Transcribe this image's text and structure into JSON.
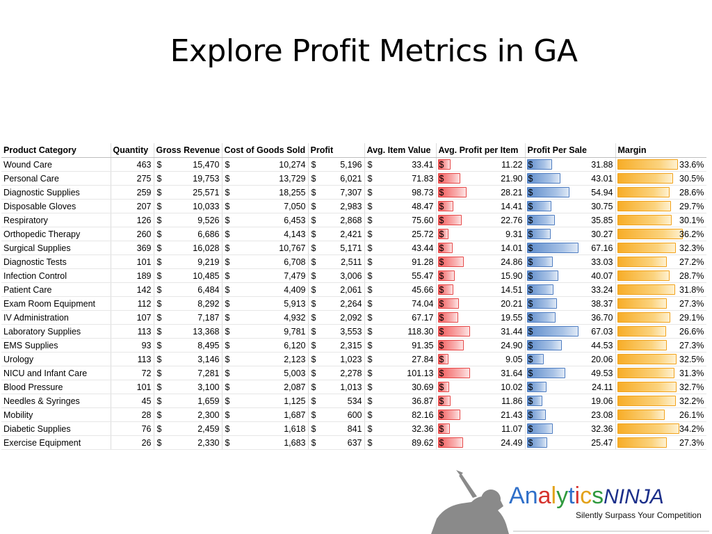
{
  "slide": {
    "title": "Explore Profit Metrics in GA"
  },
  "table": {
    "headers": {
      "category": "Product Category",
      "quantity": "Quantity",
      "gross_revenue": "Gross Revenue",
      "cogs": "Cost of Goods Sold",
      "profit": "Profit",
      "avg_item_value": "Avg. Item Value",
      "avg_profit_per_item": "Avg. Profit per Item",
      "profit_per_sale": "Profit Per Sale",
      "margin": "Margin"
    },
    "currency_symbol": "$",
    "bar_colors": {
      "avg_profit_per_item": "#f25a5a",
      "profit_per_sale": "#5e8ccb",
      "margin": "#f7ad28"
    },
    "rows": [
      {
        "category": "Wound Care",
        "quantity": "463",
        "gross_revenue": "15,470",
        "cogs": "10,274",
        "profit": "5,196",
        "avg_item_value": "33.41",
        "avg_profit_per_item": "11.22",
        "profit_per_sale": "31.88",
        "margin": "33.6%"
      },
      {
        "category": "Personal Care",
        "quantity": "275",
        "gross_revenue": "19,753",
        "cogs": "13,729",
        "profit": "6,021",
        "avg_item_value": "71.83",
        "avg_profit_per_item": "21.90",
        "profit_per_sale": "43.01",
        "margin": "30.5%"
      },
      {
        "category": "Diagnostic Supplies",
        "quantity": "259",
        "gross_revenue": "25,571",
        "cogs": "18,255",
        "profit": "7,307",
        "avg_item_value": "98.73",
        "avg_profit_per_item": "28.21",
        "profit_per_sale": "54.94",
        "margin": "28.6%"
      },
      {
        "category": "Disposable Gloves",
        "quantity": "207",
        "gross_revenue": "10,033",
        "cogs": "7,050",
        "profit": "2,983",
        "avg_item_value": "48.47",
        "avg_profit_per_item": "14.41",
        "profit_per_sale": "30.75",
        "margin": "29.7%"
      },
      {
        "category": "Respiratory",
        "quantity": "126",
        "gross_revenue": "9,526",
        "cogs": "6,453",
        "profit": "2,868",
        "avg_item_value": "75.60",
        "avg_profit_per_item": "22.76",
        "profit_per_sale": "35.85",
        "margin": "30.1%"
      },
      {
        "category": "Orthopedic Therapy",
        "quantity": "260",
        "gross_revenue": "6,686",
        "cogs": "4,143",
        "profit": "2,421",
        "avg_item_value": "25.72",
        "avg_profit_per_item": "9.31",
        "profit_per_sale": "30.27",
        "margin": "36.2%"
      },
      {
        "category": "Surgical Supplies",
        "quantity": "369",
        "gross_revenue": "16,028",
        "cogs": "10,767",
        "profit": "5,171",
        "avg_item_value": "43.44",
        "avg_profit_per_item": "14.01",
        "profit_per_sale": "67.16",
        "margin": "32.3%"
      },
      {
        "category": "Diagnostic Tests",
        "quantity": "101",
        "gross_revenue": "9,219",
        "cogs": "6,708",
        "profit": "2,511",
        "avg_item_value": "91.28",
        "avg_profit_per_item": "24.86",
        "profit_per_sale": "33.03",
        "margin": "27.2%"
      },
      {
        "category": "Infection Control",
        "quantity": "189",
        "gross_revenue": "10,485",
        "cogs": "7,479",
        "profit": "3,006",
        "avg_item_value": "55.47",
        "avg_profit_per_item": "15.90",
        "profit_per_sale": "40.07",
        "margin": "28.7%"
      },
      {
        "category": "Patient Care",
        "quantity": "142",
        "gross_revenue": "6,484",
        "cogs": "4,409",
        "profit": "2,061",
        "avg_item_value": "45.66",
        "avg_profit_per_item": "14.51",
        "profit_per_sale": "33.24",
        "margin": "31.8%"
      },
      {
        "category": "Exam Room Equipment",
        "quantity": "112",
        "gross_revenue": "8,292",
        "cogs": "5,913",
        "profit": "2,264",
        "avg_item_value": "74.04",
        "avg_profit_per_item": "20.21",
        "profit_per_sale": "38.37",
        "margin": "27.3%"
      },
      {
        "category": "IV Administration",
        "quantity": "107",
        "gross_revenue": "7,187",
        "cogs": "4,932",
        "profit": "2,092",
        "avg_item_value": "67.17",
        "avg_profit_per_item": "19.55",
        "profit_per_sale": "36.70",
        "margin": "29.1%"
      },
      {
        "category": "Laboratory Supplies",
        "quantity": "113",
        "gross_revenue": "13,368",
        "cogs": "9,781",
        "profit": "3,553",
        "avg_item_value": "118.30",
        "avg_profit_per_item": "31.44",
        "profit_per_sale": "67.03",
        "margin": "26.6%"
      },
      {
        "category": "EMS Supplies",
        "quantity": "93",
        "gross_revenue": "8,495",
        "cogs": "6,120",
        "profit": "2,315",
        "avg_item_value": "91.35",
        "avg_profit_per_item": "24.90",
        "profit_per_sale": "44.53",
        "margin": "27.3%"
      },
      {
        "category": "Urology",
        "quantity": "113",
        "gross_revenue": "3,146",
        "cogs": "2,123",
        "profit": "1,023",
        "avg_item_value": "27.84",
        "avg_profit_per_item": "9.05",
        "profit_per_sale": "20.06",
        "margin": "32.5%"
      },
      {
        "category": "NICU and Infant Care",
        "quantity": "72",
        "gross_revenue": "7,281",
        "cogs": "5,003",
        "profit": "2,278",
        "avg_item_value": "101.13",
        "avg_profit_per_item": "31.64",
        "profit_per_sale": "49.53",
        "margin": "31.3%"
      },
      {
        "category": "Blood Pressure",
        "quantity": "101",
        "gross_revenue": "3,100",
        "cogs": "2,087",
        "profit": "1,013",
        "avg_item_value": "30.69",
        "avg_profit_per_item": "10.02",
        "profit_per_sale": "24.11",
        "margin": "32.7%"
      },
      {
        "category": "Needles & Syringes",
        "quantity": "45",
        "gross_revenue": "1,659",
        "cogs": "1,125",
        "profit": "534",
        "avg_item_value": "36.87",
        "avg_profit_per_item": "11.86",
        "profit_per_sale": "19.06",
        "margin": "32.2%"
      },
      {
        "category": "Mobility",
        "quantity": "28",
        "gross_revenue": "2,300",
        "cogs": "1,687",
        "profit": "600",
        "avg_item_value": "82.16",
        "avg_profit_per_item": "21.43",
        "profit_per_sale": "23.08",
        "margin": "26.1%"
      },
      {
        "category": "Diabetic Supplies",
        "quantity": "76",
        "gross_revenue": "2,459",
        "cogs": "1,618",
        "profit": "841",
        "avg_item_value": "32.36",
        "avg_profit_per_item": "11.07",
        "profit_per_sale": "32.36",
        "margin": "34.2%"
      },
      {
        "category": "Exercise Equipment",
        "quantity": "26",
        "gross_revenue": "2,330",
        "cogs": "1,683",
        "profit": "637",
        "avg_item_value": "89.62",
        "avg_profit_per_item": "24.49",
        "profit_per_sale": "25.47",
        "margin": "27.3%"
      }
    ]
  },
  "logo": {
    "name_part1": "Analytics",
    "name_part2": "NINJA",
    "tagline": "Silently Surpass Your Competition",
    "letter_colors": [
      "#2f6fc9",
      "#2f6fc9",
      "#d6332e",
      "#e3a21a",
      "#2f9a3e",
      "#2f6fc9",
      "#d6332e",
      "#e3a21a",
      "#2f9a3e"
    ],
    "ninja_color": "#1b2f8a",
    "silhouette_color": "#8a8a8a"
  }
}
